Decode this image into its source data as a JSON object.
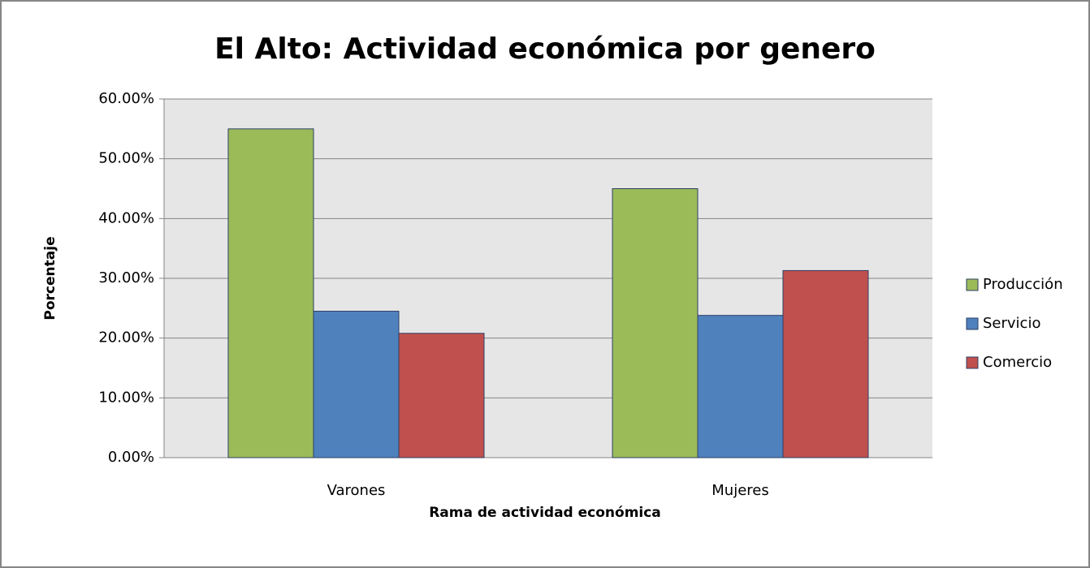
{
  "chart_data": {
    "type": "bar",
    "title": "El Alto: Actividad económica por genero",
    "xlabel": "Rama de actividad económica",
    "ylabel": "Porcentaje",
    "categories": [
      "Varones",
      "Mujeres"
    ],
    "series": [
      {
        "name": "Producción",
        "color": "#9bbb59",
        "values": [
          55,
          45
        ]
      },
      {
        "name": "Servicio",
        "color": "#4f81bd",
        "values": [
          24.5,
          23.8
        ]
      },
      {
        "name": "Comercio",
        "color": "#c0504d",
        "values": [
          20.8,
          31.3
        ]
      }
    ],
    "ylim": [
      0,
      60
    ],
    "yticks": [
      {
        "value": 0,
        "label": "0.00%"
      },
      {
        "value": 10,
        "label": "10.00%"
      },
      {
        "value": 20,
        "label": "20.00%"
      },
      {
        "value": 30,
        "label": "30.00%"
      },
      {
        "value": 40,
        "label": "40.00%"
      },
      {
        "value": 50,
        "label": "50.00%"
      },
      {
        "value": 60,
        "label": "60.00%"
      }
    ],
    "grid": true,
    "legend": "right"
  }
}
